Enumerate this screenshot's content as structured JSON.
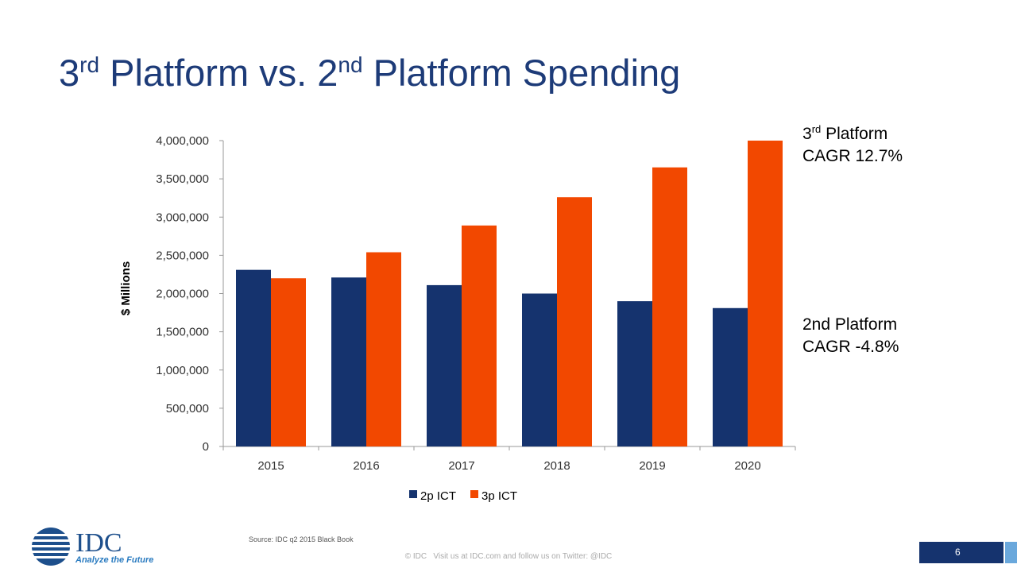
{
  "chart_data": {
    "type": "bar",
    "title": [
      "3",
      "rd",
      " Platform vs. 2",
      "nd",
      " Platform Spending"
    ],
    "y_label": "$ Millions",
    "categories": [
      "2015",
      "2016",
      "2017",
      "2018",
      "2019",
      "2020"
    ],
    "series": [
      {
        "name": "2p ICT",
        "color": "#15336e",
        "values": [
          2310000,
          2210000,
          2110000,
          2000000,
          1900000,
          1810000
        ]
      },
      {
        "name": "3p ICT",
        "color": "#f24800",
        "values": [
          2200000,
          2540000,
          2890000,
          3260000,
          3650000,
          4000000
        ]
      }
    ],
    "ylim": [
      0,
      4000000
    ],
    "yticks": [
      0,
      {
        "value": 500000,
        "label": "500,000"
      },
      {
        "value": 1000000,
        "label": "1,000,000"
      },
      {
        "value": 1500000,
        "label": "1,500,000"
      },
      {
        "value": 2000000,
        "label": "2,000,000"
      },
      {
        "value": 2500000,
        "label": "2,500,000"
      },
      {
        "value": 3000000,
        "label": "3,000,000"
      },
      {
        "value": 3500000,
        "label": "3,500,000"
      },
      {
        "value": 4000000,
        "label": "4,000,000"
      }
    ],
    "grid": false,
    "legend": "bottom",
    "annotations": [
      {
        "lines": [
          [
            "3",
            "rd",
            " Platform"
          ],
          [
            "CAGR 12.7%"
          ]
        ]
      },
      {
        "lines": [
          [
            "2nd Platform"
          ],
          [
            "CAGR -4.8%"
          ]
        ]
      }
    ]
  },
  "slide": {
    "source": "Source: IDC q2 2015 Black Book",
    "footer": "© IDC   Visit us at IDC.com and follow us on Twitter: @IDC",
    "page_number": "6",
    "logo_name": "IDC",
    "logo_tagline": "Analyze the Future"
  }
}
